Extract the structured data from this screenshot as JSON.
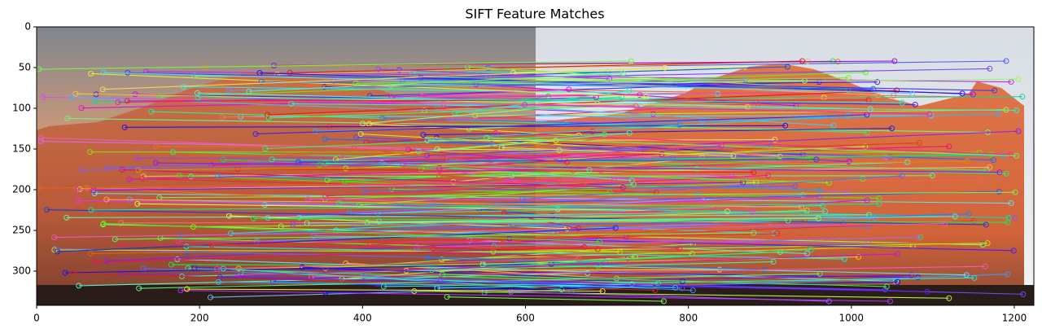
{
  "chart_data": {
    "type": "image",
    "title": "SIFT Feature Matches",
    "xlim": [
      0,
      1224
    ],
    "ylim": [
      342,
      0
    ],
    "xticks": [
      0,
      200,
      400,
      600,
      800,
      1000,
      1200
    ],
    "yticks": [
      0,
      50,
      100,
      150,
      200,
      250,
      300
    ]
  }
}
